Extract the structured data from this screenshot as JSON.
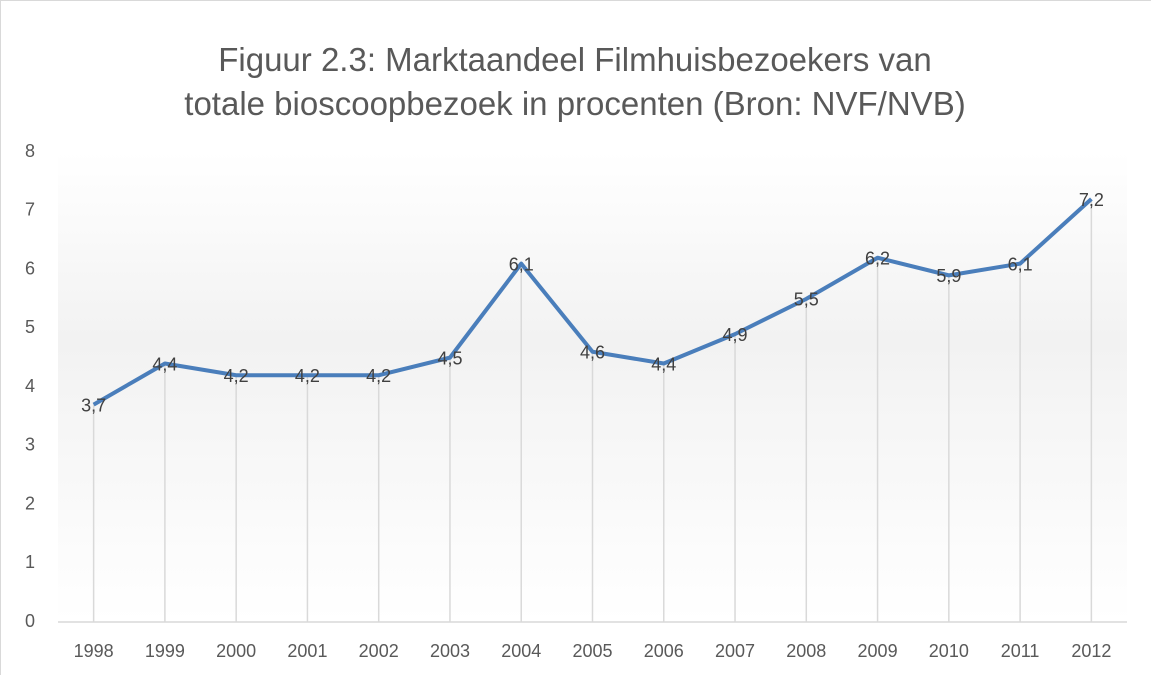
{
  "chart_data": {
    "type": "line",
    "title": "Figuur 2.3: Marktaandeel Filmhuisbezoekers van totale bioscoopbezoek in procenten (Bron: NVF/NVB)",
    "categories": [
      "1998",
      "1999",
      "2000",
      "2001",
      "2002",
      "2003",
      "2004",
      "2005",
      "2006",
      "2007",
      "2008",
      "2009",
      "2010",
      "2011",
      "2012"
    ],
    "values": [
      3.7,
      4.4,
      4.2,
      4.2,
      4.2,
      4.5,
      6.1,
      4.6,
      4.4,
      4.9,
      5.5,
      6.2,
      5.9,
      6.1,
      7.2
    ],
    "value_labels": [
      "3,7",
      "4,4",
      "4,2",
      "4,2",
      "4,2",
      "4,5",
      "6,1",
      "4,6",
      "4,4",
      "4,9",
      "5,5",
      "6,2",
      "5,9",
      "6,1",
      "7,2"
    ],
    "color": "#4a7ebb",
    "ylim": [
      0,
      8
    ],
    "yticks": [
      0,
      1,
      2,
      3,
      4,
      5,
      6,
      7,
      8
    ],
    "grid": false
  }
}
